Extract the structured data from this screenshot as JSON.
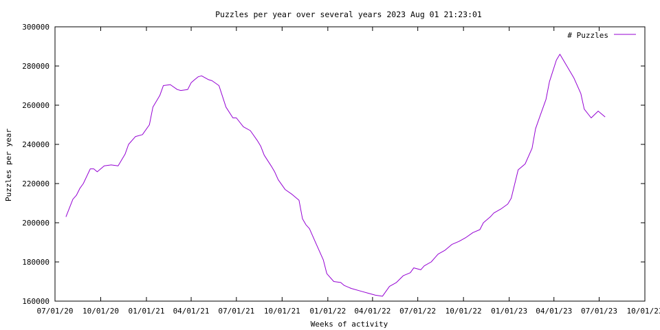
{
  "chart_data": {
    "type": "line",
    "title": "Puzzles per year over several years  2023 Aug 01  21:23:01",
    "xlabel": "Weeks of activity",
    "ylabel": "Puzzles per year",
    "legend": {
      "label": "# Puzzles",
      "position": "top-right"
    },
    "grid": false,
    "x_range": [
      "2020-07-01",
      "2023-10-01"
    ],
    "ylim": [
      160000,
      300000
    ],
    "x_ticks": [
      "07/01/20",
      "10/01/20",
      "01/01/21",
      "04/01/21",
      "07/01/21",
      "10/01/21",
      "01/01/22",
      "04/01/22",
      "07/01/22",
      "10/01/22",
      "01/01/23",
      "04/01/23",
      "07/01/23",
      "10/01/23"
    ],
    "y_ticks": [
      "160000",
      "180000",
      "200000",
      "220000",
      "240000",
      "260000",
      "280000",
      "300000"
    ],
    "colors": {
      "line": "#9400d3",
      "axis": "#000000",
      "background": "#ffffff"
    },
    "series": [
      {
        "name": "# Puzzles",
        "x": [
          "2020-07-23",
          "2020-08-06",
          "2020-08-13",
          "2020-08-20",
          "2020-08-27",
          "2020-09-10",
          "2020-09-17",
          "2020-09-24",
          "2020-10-08",
          "2020-10-22",
          "2020-11-05",
          "2020-11-19",
          "2020-11-26",
          "2020-12-10",
          "2020-12-24",
          "2021-01-07",
          "2021-01-14",
          "2021-01-28",
          "2021-02-04",
          "2021-02-18",
          "2021-03-04",
          "2021-03-11",
          "2021-03-25",
          "2021-04-01",
          "2021-04-08",
          "2021-04-15",
          "2021-04-22",
          "2021-05-06",
          "2021-05-13",
          "2021-05-27",
          "2021-06-10",
          "2021-06-24",
          "2021-07-01",
          "2021-07-15",
          "2021-07-29",
          "2021-08-12",
          "2021-08-19",
          "2021-08-26",
          "2021-09-09",
          "2021-09-16",
          "2021-09-23",
          "2021-10-07",
          "2021-10-21",
          "2021-11-04",
          "2021-11-11",
          "2021-11-18",
          "2021-11-25",
          "2021-12-09",
          "2021-12-23",
          "2021-12-30",
          "2022-01-13",
          "2022-01-27",
          "2022-02-03",
          "2022-02-17",
          "2022-03-10",
          "2022-03-24",
          "2022-04-07",
          "2022-04-21",
          "2022-05-05",
          "2022-05-19",
          "2022-06-02",
          "2022-06-16",
          "2022-06-23",
          "2022-07-07",
          "2022-07-14",
          "2022-07-28",
          "2022-08-04",
          "2022-08-11",
          "2022-08-25",
          "2022-09-08",
          "2022-09-22",
          "2022-10-06",
          "2022-10-20",
          "2022-11-03",
          "2022-11-10",
          "2022-11-24",
          "2022-12-01",
          "2022-12-15",
          "2022-12-29",
          "2023-01-05",
          "2023-01-19",
          "2023-02-02",
          "2023-02-16",
          "2023-02-23",
          "2023-03-02",
          "2023-03-16",
          "2023-03-23",
          "2023-04-06",
          "2023-04-13",
          "2023-04-27",
          "2023-05-11",
          "2023-05-25",
          "2023-06-01",
          "2023-06-15",
          "2023-06-29",
          "2023-07-13"
        ],
        "y": [
          203000,
          212000,
          214000,
          217500,
          220000,
          227500,
          227500,
          226000,
          229000,
          229500,
          229000,
          235000,
          240000,
          244000,
          245000,
          250000,
          259000,
          265000,
          270000,
          270500,
          268000,
          267500,
          268000,
          271500,
          273000,
          274500,
          275000,
          273000,
          272500,
          270000,
          259000,
          253500,
          253500,
          249000,
          247000,
          242000,
          239000,
          234500,
          229000,
          226000,
          222000,
          217000,
          214500,
          211500,
          202000,
          199000,
          197000,
          189000,
          181000,
          174000,
          170000,
          169500,
          168000,
          166500,
          165000,
          164000,
          163000,
          162500,
          167500,
          169500,
          173000,
          174500,
          177000,
          176000,
          178000,
          180000,
          182000,
          184000,
          186000,
          189000,
          190500,
          192500,
          195000,
          196500,
          200000,
          203000,
          205000,
          207000,
          209500,
          212500,
          227000,
          230000,
          238000,
          248000,
          253000,
          263000,
          272000,
          283000,
          286000,
          280000,
          274000,
          266000,
          258000,
          253500,
          257000,
          254000
        ]
      }
    ]
  }
}
